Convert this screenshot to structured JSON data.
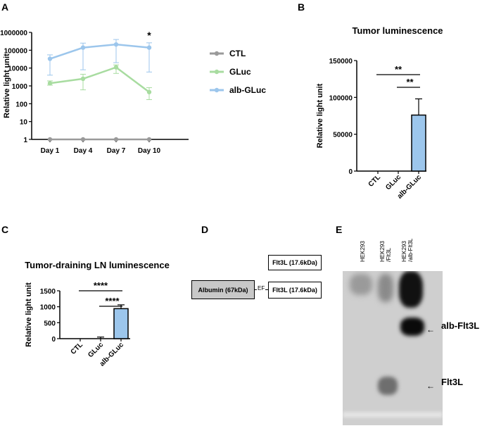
{
  "panels": {
    "a": "A",
    "b": "B",
    "c": "C",
    "d": "D",
    "e": "E"
  },
  "chart_data": [
    {
      "panel": "A",
      "type": "line",
      "title": "",
      "xlabel": "",
      "ylabel": "Relative light unit",
      "yscale": "log",
      "ylim": [
        1,
        1000000
      ],
      "yticks": [
        "1",
        "10",
        "100",
        "1000",
        "10000",
        "100000",
        "1000000"
      ],
      "categories": [
        "Day 1",
        "Day 4",
        "Day 7",
        "Day 10"
      ],
      "legend": "right",
      "grid": false,
      "annotations": [
        {
          "category": "Day 10",
          "text": "*"
        }
      ],
      "series": [
        {
          "name": "CTL",
          "color": "#9a9a9a",
          "values": [
            1,
            1,
            1,
            1
          ],
          "err_low": [
            1,
            1,
            1,
            1
          ],
          "err_high": [
            1,
            1,
            1,
            1
          ]
        },
        {
          "name": "GLuc",
          "color": "#a8dca0",
          "values": [
            1400,
            2500,
            11000,
            450
          ],
          "err_low": [
            1100,
            600,
            5000,
            170
          ],
          "err_high": [
            1900,
            4500,
            15000,
            800
          ]
        },
        {
          "name": "alb-GLuc",
          "color": "#9cc6ec",
          "values": [
            33000,
            140000,
            210000,
            140000
          ],
          "err_low": [
            4000,
            8000,
            20000,
            6000
          ],
          "err_high": [
            55000,
            250000,
            400000,
            260000
          ]
        }
      ]
    },
    {
      "panel": "B",
      "type": "bar",
      "title": "Tumor luminescence",
      "xlabel": "",
      "ylabel": "Relative light unit",
      "ylim": [
        0,
        150000
      ],
      "yticks": [
        "0",
        "50000",
        "100000",
        "150000"
      ],
      "categories": [
        "CTL",
        "GLuc",
        "alb-GLuc"
      ],
      "values": [
        0,
        0,
        76000
      ],
      "err_high": [
        0,
        0,
        98000
      ],
      "bar_color": "#9cc6ec",
      "significance": [
        {
          "from": "CTL",
          "to": "alb-GLuc",
          "text": "**"
        },
        {
          "from": "GLuc",
          "to": "alb-GLuc",
          "text": "**"
        }
      ]
    },
    {
      "panel": "C",
      "type": "bar",
      "title": "Tumor-draining LN luminescence",
      "xlabel": "",
      "ylabel": "Relative light unit",
      "ylim": [
        0,
        1500
      ],
      "yticks": [
        "0",
        "500",
        "1000",
        "1500"
      ],
      "categories": [
        "CTL",
        "GLuc",
        "alb-GLuc"
      ],
      "values": [
        0,
        0,
        940
      ],
      "err_high": [
        0,
        50,
        1060
      ],
      "bar_color": "#9cc6ec",
      "significance": [
        {
          "from": "CTL",
          "to": "alb-GLuc",
          "text": "****"
        },
        {
          "from": "GLuc",
          "to": "alb-GLuc",
          "text": "****"
        }
      ]
    }
  ],
  "diagram": {
    "flt3l_box": "Flt3L (17.6kDa)",
    "albumin_box": "Albumin (67kDa)",
    "linker": "EF",
    "fusion_flt3l_box": "Flt3L (17.6kDa)",
    "albumin_fill": "#c8c8c8"
  },
  "blot": {
    "lanes": [
      "HEK293",
      "HEK293\n/Flt3L",
      "HEK293\n/alb-Flt3L"
    ],
    "band_labels": [
      "alb-Flt3L",
      "Flt3L"
    ]
  }
}
